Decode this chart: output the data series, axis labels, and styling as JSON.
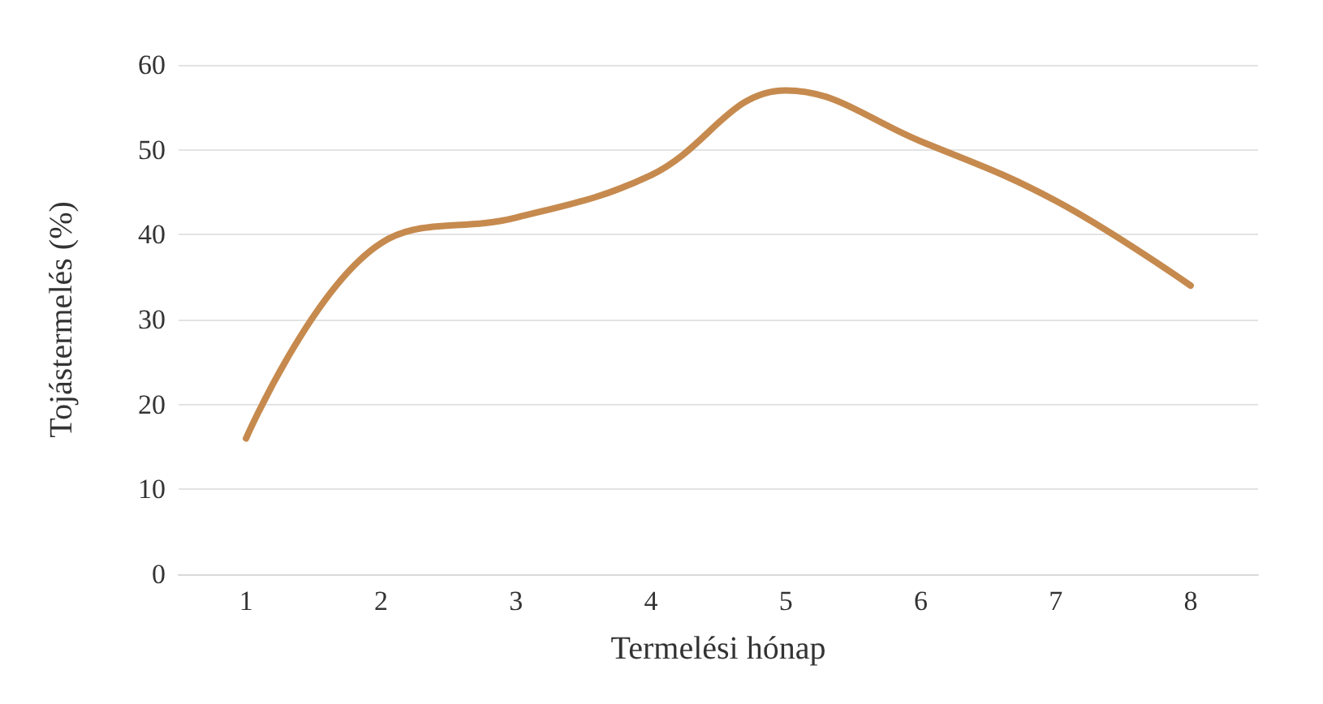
{
  "chart_data": {
    "type": "line",
    "xlabel": "Termelési hónap",
    "ylabel": "Tojástermelés (%)",
    "categories": [
      "1",
      "2",
      "3",
      "4",
      "5",
      "6",
      "7",
      "8"
    ],
    "series": [
      {
        "color": "#c68a4e",
        "values": [
          16,
          39,
          42,
          47,
          57,
          51,
          44,
          34
        ]
      }
    ],
    "ylim": [
      0,
      60
    ],
    "yticks": [
      0,
      10,
      20,
      30,
      40,
      50,
      60
    ],
    "grid": "y",
    "marker": "none",
    "line_style": "solid"
  }
}
